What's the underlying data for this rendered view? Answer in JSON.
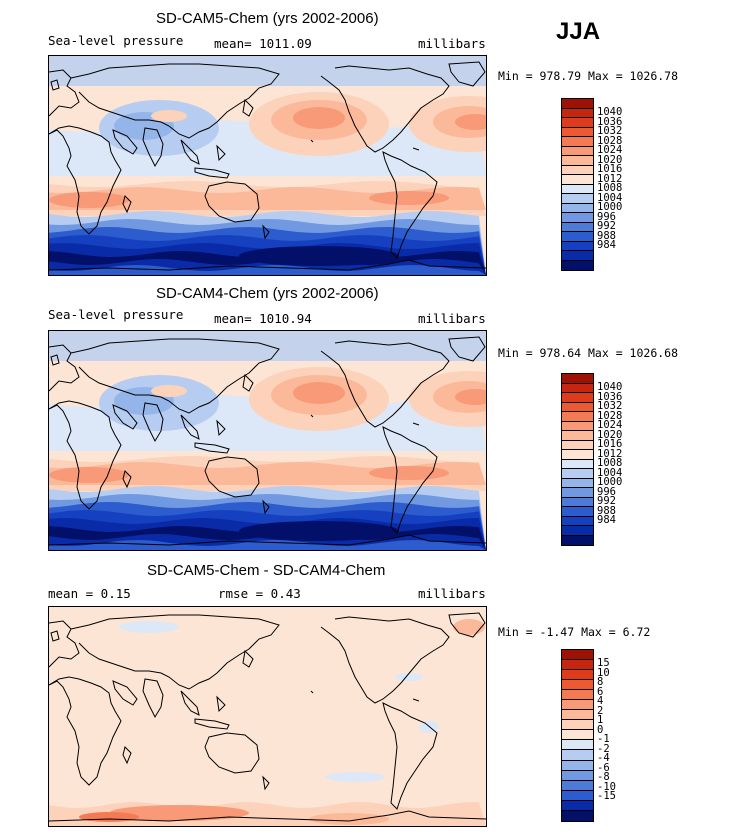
{
  "season": "JJA",
  "palette": {
    "pos": [
      "#fde5d5",
      "#fcd2bb",
      "#fbb99a",
      "#f89a78",
      "#f47a54",
      "#ec5a34",
      "#dd3b1c",
      "#c6260f",
      "#9e1205"
    ],
    "neg": [
      "#dce8f8",
      "#b6cdf1",
      "#94b5ea",
      "#7199e2",
      "#4e7bd8",
      "#2c5ccd",
      "#1541c0",
      "#0a2ba8",
      "#061c84",
      "#03106a"
    ],
    "neutral": "#ffffff",
    "land_outline": "#000000"
  },
  "panels": [
    {
      "title": "SD-CAM5-Chem (yrs 2002-2006)",
      "left_label": "Sea-level pressure",
      "mean_text": "mean= 1011.09",
      "units": "millibars",
      "minmax": "Min = 978.79 Max = 1026.78",
      "colorbar": [
        "1040",
        "1036",
        "1032",
        "1028",
        "1024",
        "1020",
        "1016",
        "1012",
        "1008",
        "1004",
        "1000",
        "996",
        "992",
        "988",
        "984"
      ]
    },
    {
      "title": "SD-CAM4-Chem (yrs 2002-2006)",
      "left_label": "Sea-level pressure",
      "mean_text": "mean= 1010.94",
      "units": "millibars",
      "minmax": "Min = 978.64 Max = 1026.68",
      "colorbar": [
        "1040",
        "1036",
        "1032",
        "1028",
        "1024",
        "1020",
        "1016",
        "1012",
        "1008",
        "1004",
        "1000",
        "996",
        "992",
        "988",
        "984"
      ]
    },
    {
      "title": "SD-CAM5-Chem - SD-CAM4-Chem",
      "left_label": "mean =    0.15",
      "mean_text": "rmse =    0.43",
      "units": "millibars",
      "minmax": "Min =  -1.47 Max =   6.72",
      "colorbar": [
        "15",
        "10",
        "8",
        "6",
        "4",
        "2",
        "1",
        "0",
        "-1",
        "-2",
        "-4",
        "-6",
        "-8",
        "-10",
        "-15"
      ]
    }
  ]
}
